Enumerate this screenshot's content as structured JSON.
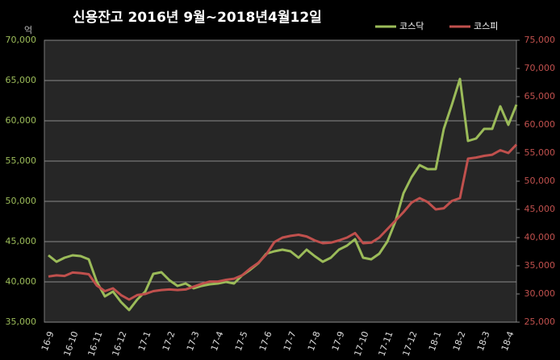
{
  "chart_data": {
    "type": "line",
    "title": "신용잔고 2016년 9월~2018년4월12일",
    "y_unit": "억",
    "categories": [
      "16-9",
      null,
      null,
      "16-10",
      null,
      null,
      "16-11",
      null,
      null,
      "16-12",
      null,
      null,
      "17-1",
      null,
      null,
      "17-2",
      null,
      null,
      "17-3",
      null,
      null,
      "17-4",
      null,
      null,
      "17-5",
      null,
      null,
      "17-6",
      null,
      null,
      "17-7",
      null,
      null,
      "17-8",
      null,
      null,
      "17-9",
      null,
      null,
      "17-10",
      null,
      null,
      "17-11",
      null,
      null,
      "17-12",
      null,
      null,
      "18-1",
      null,
      null,
      "18-2",
      null,
      null,
      "18-3",
      null,
      null,
      "18-4",
      null
    ],
    "series": [
      {
        "name": "코스닥",
        "color": "#9bbb59",
        "axis": "y",
        "values": [
          43300,
          42500,
          43000,
          43300,
          43200,
          42800,
          40000,
          38200,
          38800,
          37500,
          36500,
          37800,
          38800,
          41000,
          41200,
          40200,
          39500,
          39800,
          39200,
          39500,
          39700,
          39800,
          40000,
          39800,
          40800,
          41500,
          42300,
          43500,
          43800,
          44000,
          43800,
          43000,
          44000,
          43200,
          42500,
          43000,
          44000,
          44500,
          45300,
          43000,
          42800,
          43500,
          45000,
          47500,
          51000,
          53000,
          54500,
          54000,
          54000,
          59000,
          62000,
          65200,
          57500,
          57800,
          59000,
          59000,
          61800,
          59500,
          62000
        ]
      },
      {
        "name": "코스피",
        "color": "#c0504d",
        "axis": "y2",
        "values": [
          33100,
          33300,
          33200,
          33800,
          33700,
          33500,
          31500,
          30500,
          31000,
          29800,
          29000,
          29800,
          30000,
          30500,
          30700,
          30800,
          30700,
          30800,
          31300,
          31800,
          32200,
          32200,
          32500,
          32700,
          33300,
          34500,
          35500,
          37000,
          39200,
          40000,
          40300,
          40500,
          40200,
          39500,
          39000,
          39100,
          39500,
          40000,
          40800,
          39000,
          39100,
          40000,
          41500,
          43000,
          44500,
          46200,
          47000,
          46300,
          45000,
          45200,
          46500,
          47000,
          54000,
          54200,
          54500,
          54700,
          55500,
          55000,
          56500
        ]
      }
    ],
    "ylim": [
      35000,
      70000
    ],
    "yticks": [
      {
        "value": 35000,
        "label": "35,000"
      },
      {
        "value": 40000,
        "label": "40,000"
      },
      {
        "value": 45000,
        "label": "45,000"
      },
      {
        "value": 50000,
        "label": "50,000"
      },
      {
        "value": 55000,
        "label": "55,000"
      },
      {
        "value": 60000,
        "label": "60,000"
      },
      {
        "value": 65000,
        "label": "65,000"
      },
      {
        "value": 70000,
        "label": "70,000"
      }
    ],
    "y2lim": [
      25000,
      75000
    ],
    "y2ticks": [
      {
        "value": 25000,
        "label": "25,000"
      },
      {
        "value": 30000,
        "label": "30,000"
      },
      {
        "value": 35000,
        "label": "35,000"
      },
      {
        "value": 40000,
        "label": "40,000"
      },
      {
        "value": 45000,
        "label": "45,000"
      },
      {
        "value": 50000,
        "label": "50,000"
      },
      {
        "value": 55000,
        "label": "55,000"
      },
      {
        "value": 60000,
        "label": "60,000"
      },
      {
        "value": 65000,
        "label": "65,000"
      },
      {
        "value": 70000,
        "label": "70,000"
      },
      {
        "value": 75000,
        "label": "75,000"
      }
    ],
    "grid": true,
    "legend": "top-right"
  }
}
